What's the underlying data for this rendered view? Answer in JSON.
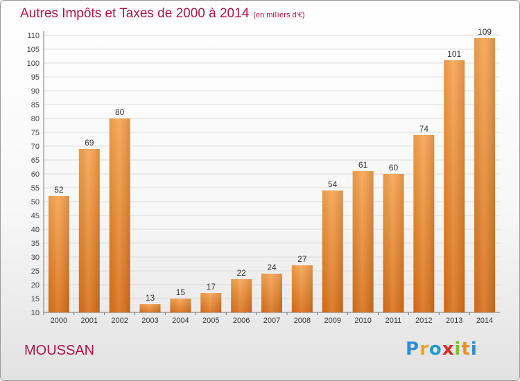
{
  "title": "Autres Impôts et Taxes de 2000 à 2014",
  "unit_note": "(en milliers d'€)",
  "commune": "MOUSSAN",
  "logo": {
    "letters": [
      "P",
      "r",
      "o",
      "x",
      "i",
      "t",
      "i"
    ],
    "colors": [
      "#2e8bd8",
      "#f0a020",
      "#1f9ad6",
      "#d92b2b",
      "#7cbf2a",
      "#e8902a",
      "#2e8bd8"
    ]
  },
  "colors": {
    "bar": "#e8802a",
    "title": "#b0124e"
  },
  "chart_data": {
    "type": "bar",
    "categories": [
      "2000",
      "2001",
      "2002",
      "2003",
      "2004",
      "2005",
      "2006",
      "2007",
      "2008",
      "2009",
      "2010",
      "2011",
      "2012",
      "2013",
      "2014"
    ],
    "values": [
      52,
      69,
      80,
      13,
      15,
      17,
      22,
      24,
      27,
      54,
      61,
      60,
      74,
      101,
      109
    ],
    "ylim": [
      10,
      110
    ],
    "yticks": [
      10,
      15,
      20,
      25,
      30,
      35,
      40,
      45,
      50,
      55,
      60,
      65,
      70,
      75,
      80,
      85,
      90,
      95,
      100,
      105,
      110
    ],
    "grid": true,
    "xlabel": "",
    "ylabel": ""
  }
}
